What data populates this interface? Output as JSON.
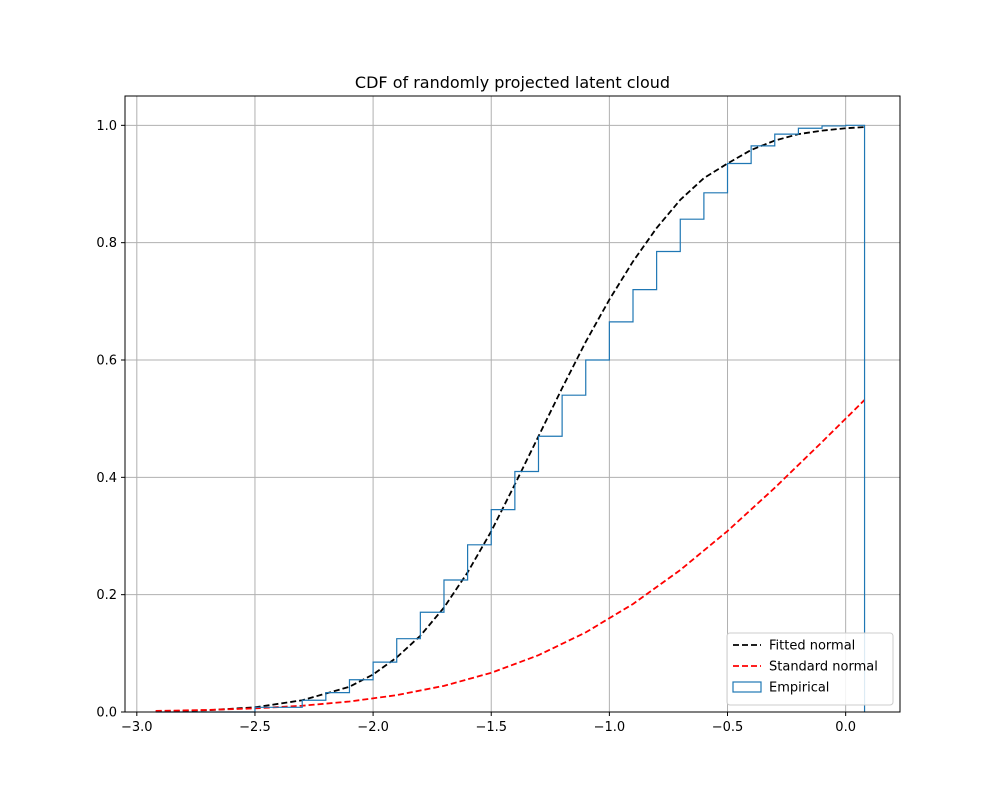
{
  "chart_data": {
    "type": "line",
    "title": "CDF of randomly projected latent cloud",
    "xlabel": "",
    "ylabel": "",
    "xlim": [
      -3.05,
      0.23
    ],
    "ylim": [
      0.0,
      1.05
    ],
    "grid": true,
    "legend_position": "lower right",
    "xticks": [
      -3.0,
      -2.5,
      -2.0,
      -1.5,
      -1.0,
      -0.5,
      0.0
    ],
    "xtick_labels": [
      "−3.0",
      "−2.5",
      "−2.0",
      "−1.5",
      "−1.0",
      "−0.5",
      "0.0"
    ],
    "yticks": [
      0.0,
      0.2,
      0.4,
      0.6,
      0.8,
      1.0
    ],
    "ytick_labels": [
      "0.0",
      "0.2",
      "0.4",
      "0.6",
      "0.8",
      "1.0"
    ],
    "series": [
      {
        "name": "Fitted normal",
        "style": "dashed",
        "color": "#000000",
        "x": [
          -2.92,
          -2.7,
          -2.5,
          -2.3,
          -2.1,
          -2.0,
          -1.9,
          -1.8,
          -1.7,
          -1.6,
          -1.5,
          -1.4,
          -1.3,
          -1.2,
          -1.1,
          -1.0,
          -0.9,
          -0.8,
          -0.7,
          -0.6,
          -0.5,
          -0.4,
          -0.3,
          -0.2,
          -0.1,
          0.0,
          0.08
        ],
        "y": [
          0.001,
          0.003,
          0.008,
          0.02,
          0.043,
          0.064,
          0.093,
          0.13,
          0.178,
          0.238,
          0.308,
          0.388,
          0.47,
          0.552,
          0.631,
          0.703,
          0.768,
          0.825,
          0.873,
          0.91,
          0.935,
          0.958,
          0.974,
          0.985,
          0.991,
          0.995,
          0.997
        ]
      },
      {
        "name": "Standard normal",
        "style": "dashed",
        "color": "#ff0000",
        "x": [
          -2.92,
          -2.7,
          -2.5,
          -2.3,
          -2.1,
          -1.9,
          -1.7,
          -1.5,
          -1.3,
          -1.1,
          -0.9,
          -0.7,
          -0.5,
          -0.3,
          -0.1,
          0.08
        ],
        "y": [
          0.0018,
          0.0035,
          0.0062,
          0.0107,
          0.0179,
          0.0287,
          0.0446,
          0.0668,
          0.0968,
          0.1357,
          0.1841,
          0.242,
          0.3085,
          0.3821,
          0.4602,
          0.5319
        ]
      },
      {
        "name": "Empirical",
        "style": "step",
        "color": "#1f77b4",
        "x": [
          -2.92,
          -2.5,
          -2.3,
          -2.2,
          -2.1,
          -2.0,
          -1.9,
          -1.8,
          -1.7,
          -1.6,
          -1.5,
          -1.4,
          -1.3,
          -1.2,
          -1.1,
          -1.0,
          -0.9,
          -0.8,
          -0.7,
          -0.6,
          -0.5,
          -0.4,
          -0.3,
          -0.2,
          -0.1,
          0.0,
          0.08
        ],
        "y": [
          0.0,
          0.008,
          0.02,
          0.033,
          0.055,
          0.085,
          0.125,
          0.17,
          0.225,
          0.285,
          0.345,
          0.41,
          0.47,
          0.54,
          0.6,
          0.665,
          0.72,
          0.785,
          0.84,
          0.885,
          0.935,
          0.965,
          0.985,
          0.995,
          0.999,
          1.0,
          1.0
        ]
      }
    ]
  }
}
